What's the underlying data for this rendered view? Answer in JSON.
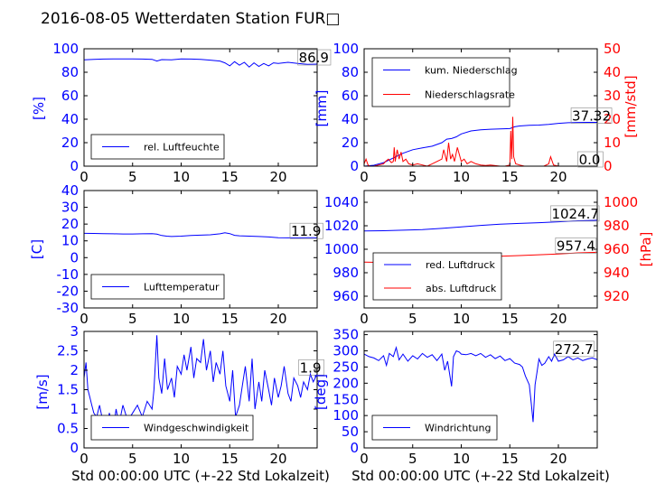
{
  "figure_title": "2016-08-05 Wetterdaten Station FUR□",
  "chart_data": [
    {
      "id": "humidity",
      "type": "line",
      "xlim": [
        0,
        24
      ],
      "ylim": [
        0,
        100
      ],
      "xticks": [
        0,
        5,
        10,
        15,
        20
      ],
      "yticks": [
        0,
        20,
        40,
        60,
        80,
        100
      ],
      "ylabel": "[%]",
      "ylabel_color": "#0000ff",
      "tick_color": "#0000ff",
      "series": [
        {
          "name": "rel. Luftfeuchte",
          "color": "#0000ff",
          "x": [
            0,
            1,
            2,
            3,
            4,
            5,
            6,
            7,
            7.5,
            8,
            9,
            10,
            11,
            12,
            13,
            14,
            14.5,
            15,
            15.5,
            16,
            16.5,
            17,
            17.5,
            18,
            18.5,
            19,
            19.5,
            20,
            21,
            22,
            23,
            24
          ],
          "y": [
            90.5,
            91,
            91.2,
            91.3,
            91.4,
            91.3,
            91.2,
            91,
            89.5,
            90.8,
            90.5,
            91.3,
            91.2,
            91,
            90.3,
            89.5,
            88,
            85.5,
            89,
            86,
            88.5,
            84.5,
            88,
            85,
            87.5,
            85.5,
            88,
            87.5,
            88.5,
            87.5,
            86.8,
            86.9
          ]
        }
      ],
      "annotations": [
        {
          "text": "86.9",
          "x": 22.1,
          "y": 86.9,
          "color": "#000000"
        }
      ],
      "legend": {
        "position": "lower-left",
        "entries": [
          {
            "label": "rel. Luftfeuchte",
            "color": "#0000ff"
          }
        ]
      }
    },
    {
      "id": "precipitation",
      "type": "line",
      "xlim": [
        0,
        24
      ],
      "ylim": [
        0,
        100
      ],
      "xticks": [
        0,
        5,
        10,
        15,
        20
      ],
      "yticks": [
        0,
        20,
        40,
        60,
        80,
        100
      ],
      "ylabel": "[mm]",
      "ylabel_color": "#0000ff",
      "tick_color": "#0000ff",
      "y2lim": [
        0,
        50
      ],
      "y2ticks": [
        0,
        10,
        20,
        30,
        40,
        50
      ],
      "y2label": "[mm/std]",
      "y2_color": "#ff0000",
      "series": [
        {
          "name": "kum. Niederschlag",
          "color": "#0000ff",
          "axis": "left",
          "x": [
            0,
            1,
            2,
            3,
            3.5,
            4,
            5,
            6,
            7,
            8,
            8.5,
            9,
            9.5,
            10,
            11,
            12,
            13,
            14,
            15,
            15.5,
            16,
            17,
            18,
            19,
            20,
            21,
            22,
            23,
            24
          ],
          "y": [
            0,
            0.8,
            3,
            7,
            9,
            11,
            14,
            15.5,
            17,
            20,
            23,
            23.5,
            25,
            27.5,
            30,
            31,
            31.5,
            31.8,
            32,
            33.5,
            34.2,
            34.8,
            35,
            35.5,
            36.5,
            37,
            37.2,
            37.3,
            37.32
          ]
        },
        {
          "name": "Niederschlagsrate",
          "color": "#ff0000",
          "axis": "right",
          "x": [
            0,
            0.2,
            0.4,
            0.6,
            1,
            1.5,
            2,
            2.2,
            2.5,
            2.8,
            3,
            3.1,
            3.2,
            3.4,
            3.6,
            3.8,
            4,
            4.3,
            4.6,
            5,
            5.5,
            6,
            6.5,
            7,
            7.5,
            8,
            8.2,
            8.5,
            8.7,
            8.9,
            9.1,
            9.3,
            9.6,
            10,
            10.3,
            10.6,
            11,
            11.5,
            12,
            12.5,
            13,
            14,
            14.5,
            15,
            15.1,
            15.2,
            15.3,
            15.4,
            15.6,
            16,
            16.5,
            17,
            17.5,
            18,
            18.5,
            19,
            19.2,
            19.5,
            20,
            21,
            22,
            23,
            24
          ],
          "y": [
            1,
            3,
            0.5,
            0,
            0,
            0.5,
            1,
            2,
            3,
            1.5,
            2,
            8,
            2,
            7,
            3,
            6,
            2,
            3,
            1,
            0.5,
            1,
            0.5,
            0,
            1,
            2,
            3,
            7,
            2,
            10,
            3,
            5,
            2,
            8,
            2,
            3,
            1,
            2,
            1,
            0.5,
            0.3,
            0.5,
            0,
            0,
            0.5,
            15,
            3,
            21,
            4,
            1,
            0.5,
            0,
            0,
            0,
            0,
            0,
            1,
            4,
            0.5,
            0,
            0,
            0,
            0,
            0
          ]
        }
      ],
      "annotations": [
        {
          "text": "37.32",
          "x": 21.4,
          "y": 37.32,
          "color": "#000000",
          "axis": "left"
        },
        {
          "text": "0.0",
          "x": 22.1,
          "y": 0,
          "color": "#000000",
          "axis": "right"
        }
      ],
      "legend": {
        "position": "upper-left",
        "entries": [
          {
            "label": "kum. Niederschlag",
            "color": "#0000ff"
          },
          {
            "label": "Niederschlagsrate",
            "color": "#ff0000"
          }
        ]
      }
    },
    {
      "id": "temperature",
      "type": "line",
      "xlim": [
        0,
        24
      ],
      "ylim": [
        -30,
        40
      ],
      "xticks": [
        0,
        5,
        10,
        15,
        20
      ],
      "yticks": [
        -30,
        -20,
        -10,
        0,
        10,
        20,
        30,
        40
      ],
      "ylabel": "[C]",
      "ylabel_color": "#0000ff",
      "tick_color": "#0000ff",
      "series": [
        {
          "name": "Lufttemperatur",
          "color": "#0000ff",
          "x": [
            0,
            1,
            2,
            3,
            4,
            5,
            6,
            7,
            7.5,
            8,
            8.5,
            9,
            10,
            11,
            12,
            13,
            14,
            14.5,
            15,
            15.5,
            16,
            17,
            18,
            19,
            20,
            21,
            22,
            23,
            24
          ],
          "y": [
            14.5,
            14.4,
            14.3,
            14.2,
            14.1,
            14.1,
            14.2,
            14.3,
            14,
            13.2,
            12.8,
            12.6,
            12.8,
            13.2,
            13.4,
            13.6,
            14.2,
            14.8,
            14.3,
            13.3,
            13,
            12.8,
            12.6,
            12.3,
            11.9,
            11.8,
            11.8,
            11.9,
            11.9
          ]
        }
      ],
      "annotations": [
        {
          "text": "11.9",
          "x": 21.3,
          "y": 11.9,
          "color": "#000000"
        }
      ],
      "legend": {
        "position": "lower-left",
        "entries": [
          {
            "label": "Lufttemperatur",
            "color": "#0000ff"
          }
        ]
      }
    },
    {
      "id": "pressure",
      "type": "line",
      "xlim": [
        0,
        24
      ],
      "ylim": [
        950,
        1050
      ],
      "xticks": [
        0,
        5,
        10,
        15,
        20
      ],
      "yticks": [
        960,
        980,
        1000,
        1020,
        1040
      ],
      "ylabel": "",
      "tick_color": "#0000ff",
      "y2lim": [
        910,
        1010
      ],
      "y2ticks": [
        920,
        940,
        960,
        980,
        1000
      ],
      "y2label": "[hPa]",
      "y2_color": "#ff0000",
      "series": [
        {
          "name": "red. Luftdruck",
          "color": "#0000ff",
          "axis": "left",
          "x": [
            0,
            2,
            4,
            6,
            8,
            10,
            12,
            14,
            16,
            18,
            20,
            22,
            24
          ],
          "y": [
            1015.5,
            1015.8,
            1016.2,
            1016.8,
            1017.8,
            1019,
            1020.3,
            1021.3,
            1022,
            1022.6,
            1023.4,
            1024.2,
            1024.7
          ]
        },
        {
          "name": "abs. Luftdruck",
          "color": "#ff0000",
          "axis": "right",
          "x": [
            0,
            2,
            4,
            6,
            8,
            10,
            12,
            14,
            16,
            18,
            20,
            22,
            24
          ],
          "y": [
            949,
            948.8,
            949.2,
            949.8,
            950.6,
            951.8,
            953,
            954,
            954.6,
            955.3,
            956,
            956.9,
            957.4
          ]
        }
      ],
      "annotations": [
        {
          "text": "1024.7",
          "x": 19.3,
          "y": 1024.7,
          "color": "#000000",
          "axis": "left"
        },
        {
          "text": "957.4",
          "x": 19.8,
          "y": 957.4,
          "color": "#000000",
          "axis": "right"
        }
      ],
      "legend": {
        "position": "lower-left",
        "entries": [
          {
            "label": "red. Luftdruck",
            "color": "#0000ff"
          },
          {
            "label": "abs. Luftdruck",
            "color": "#ff0000"
          }
        ]
      }
    },
    {
      "id": "wind-speed",
      "type": "line",
      "xlim": [
        0,
        24
      ],
      "ylim": [
        0,
        3
      ],
      "xticks": [
        0,
        5,
        10,
        15,
        20
      ],
      "yticks": [
        0,
        0.5,
        1,
        1.5,
        2,
        2.5,
        3
      ],
      "ylabel": "[m/s]",
      "ylabel_color": "#0000ff",
      "tick_color": "#0000ff",
      "xlabel": "Std 00:00:00 UTC (+-22 Std Lokalzeit)",
      "series": [
        {
          "name": "Windgeschwindigkeit",
          "color": "#0000ff",
          "x": [
            0,
            0.2,
            0.4,
            0.6,
            0.8,
            1,
            1.3,
            1.6,
            2,
            2.3,
            2.6,
            3,
            3.3,
            3.6,
            4,
            4.5,
            5,
            5.5,
            6,
            6.5,
            7,
            7.2,
            7.5,
            7.7,
            8,
            8.3,
            8.6,
            9,
            9.3,
            9.6,
            10,
            10.3,
            10.6,
            11,
            11.3,
            11.6,
            12,
            12.3,
            12.6,
            13,
            13.3,
            13.6,
            14,
            14.3,
            14.6,
            15,
            15.3,
            15.6,
            16,
            16.3,
            16.6,
            17,
            17.3,
            17.6,
            18,
            18.3,
            18.6,
            19,
            19.3,
            19.6,
            20,
            20.3,
            20.6,
            21,
            21.3,
            21.6,
            22,
            22.3,
            22.6,
            23,
            23.3,
            23.6,
            24
          ],
          "y": [
            1.8,
            2.2,
            1.5,
            1.3,
            1.1,
            0.9,
            0.8,
            1.1,
            0.6,
            0.4,
            0.9,
            0.5,
            1.0,
            0.6,
            1.1,
            0.7,
            0.9,
            1.1,
            0.8,
            1.2,
            1.0,
            1.5,
            2.9,
            1.8,
            1.4,
            2.3,
            1.5,
            1.8,
            1.3,
            2.1,
            1.9,
            2.4,
            2.0,
            2.6,
            1.8,
            2.3,
            2.2,
            2.8,
            2.0,
            2.5,
            1.7,
            2.2,
            1.9,
            2.5,
            1.6,
            1.2,
            2.0,
            0.8,
            1.1,
            1.6,
            2.1,
            1.2,
            2.3,
            1.0,
            1.7,
            1.2,
            2.0,
            1.5,
            1.1,
            1.8,
            1.3,
            1.6,
            2.1,
            1.4,
            1.2,
            1.8,
            1.6,
            1.3,
            1.7,
            1.5,
            1.9,
            1.7,
            1.9
          ]
        }
      ],
      "annotations": [
        {
          "text": "1.9",
          "x": 22.2,
          "y": 1.9,
          "color": "#000000"
        }
      ],
      "legend": {
        "position": "lower-left",
        "entries": [
          {
            "label": "Windgeschwindigkeit",
            "color": "#0000ff"
          }
        ]
      }
    },
    {
      "id": "wind-direction",
      "type": "line",
      "xlim": [
        0,
        24
      ],
      "ylim": [
        0,
        360
      ],
      "xticks": [
        0,
        5,
        10,
        15,
        20
      ],
      "yticks": [
        0,
        50,
        100,
        150,
        200,
        250,
        300,
        350
      ],
      "ylabel": "[deg]",
      "ylabel_color": "#0000ff",
      "tick_color": "#0000ff",
      "xlabel": "Std 00:00:00 UTC (+-22 Std Lokalzeit)",
      "series": [
        {
          "name": "Windrichtung",
          "color": "#0000ff",
          "x": [
            0,
            0.5,
            1,
            1.5,
            2,
            2.3,
            2.6,
            3,
            3.3,
            3.6,
            4,
            4.5,
            5,
            5.5,
            6,
            6.5,
            7,
            7.5,
            8,
            8.3,
            8.6,
            9,
            9.2,
            9.5,
            9.8,
            10,
            10.5,
            11,
            11.5,
            12,
            12.5,
            13,
            13.5,
            14,
            14.5,
            15,
            15.5,
            16,
            16.3,
            16.6,
            17,
            17.2,
            17.4,
            17.6,
            17.8,
            18,
            18.3,
            18.6,
            19,
            19.3,
            19.6,
            20,
            20.5,
            21,
            21.5,
            22,
            22.5,
            23,
            23.5,
            24
          ],
          "y": [
            290,
            282,
            278,
            270,
            285,
            255,
            292,
            282,
            310,
            272,
            290,
            268,
            285,
            275,
            292,
            280,
            288,
            270,
            290,
            240,
            268,
            190,
            282,
            300,
            296,
            290,
            288,
            292,
            285,
            292,
            280,
            288,
            276,
            284,
            270,
            276,
            262,
            258,
            250,
            222,
            195,
            140,
            80,
            195,
            235,
            275,
            255,
            262,
            282,
            268,
            290,
            268,
            272,
            282,
            272,
            278,
            270,
            275,
            278,
            272.7
          ]
        }
      ],
      "annotations": [
        {
          "text": "272.7",
          "x": 19.6,
          "y": 285,
          "color": "#000000"
        }
      ],
      "legend": {
        "position": "lower-left",
        "entries": [
          {
            "label": "Windrichtung",
            "color": "#0000ff"
          }
        ]
      }
    }
  ]
}
